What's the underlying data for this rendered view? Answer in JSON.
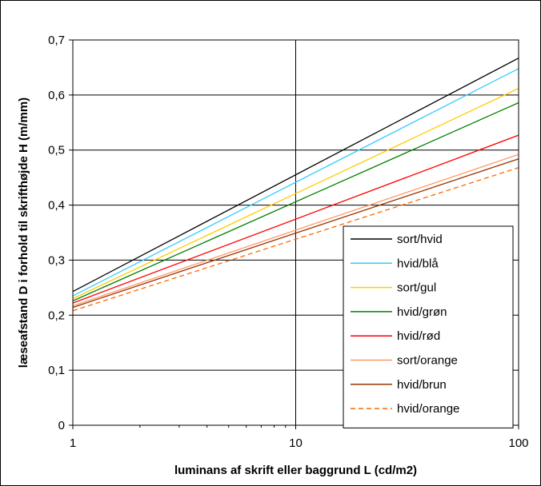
{
  "chart_data": {
    "type": "line",
    "xlabel": "luminans af skrift eller baggrund L (cd/m2)",
    "ylabel": "læseafstand D i forhold til skrifthøjde H (m/mm)",
    "x_scale": "log",
    "xlim": [
      1,
      100
    ],
    "ylim": [
      0,
      0.7
    ],
    "x_ticks": [
      "1",
      "10",
      "100"
    ],
    "y_ticks": [
      "0",
      "0,1",
      "0,2",
      "0,3",
      "0,4",
      "0,5",
      "0,6",
      "0,7"
    ],
    "grid": true,
    "legend_position": "bottom-right",
    "series": [
      {
        "name": "sort/hvid",
        "color": "#000000",
        "dash": "solid",
        "x": [
          1,
          100
        ],
        "y": [
          0.243,
          0.667
        ]
      },
      {
        "name": "hvid/blå",
        "color": "#33ccff",
        "dash": "solid",
        "x": [
          1,
          100
        ],
        "y": [
          0.235,
          0.648
        ]
      },
      {
        "name": "sort/gul",
        "color": "#ffcc00",
        "dash": "solid",
        "x": [
          1,
          100
        ],
        "y": [
          0.23,
          0.612
        ]
      },
      {
        "name": "hvid/grøn",
        "color": "#008000",
        "dash": "solid",
        "x": [
          1,
          100
        ],
        "y": [
          0.226,
          0.586
        ]
      },
      {
        "name": "hvid/rød",
        "color": "#ff0000",
        "dash": "solid",
        "x": [
          1,
          100
        ],
        "y": [
          0.222,
          0.527
        ]
      },
      {
        "name": "sort/orange",
        "color": "#ff9966",
        "dash": "solid",
        "x": [
          1,
          100
        ],
        "y": [
          0.217,
          0.492
        ]
      },
      {
        "name": "hvid/brun",
        "color": "#993300",
        "dash": "solid",
        "x": [
          1,
          100
        ],
        "y": [
          0.214,
          0.484
        ]
      },
      {
        "name": "hvid/orange",
        "color": "#ff6600",
        "dash": "dashed",
        "x": [
          1,
          100
        ],
        "y": [
          0.208,
          0.468
        ]
      }
    ]
  }
}
